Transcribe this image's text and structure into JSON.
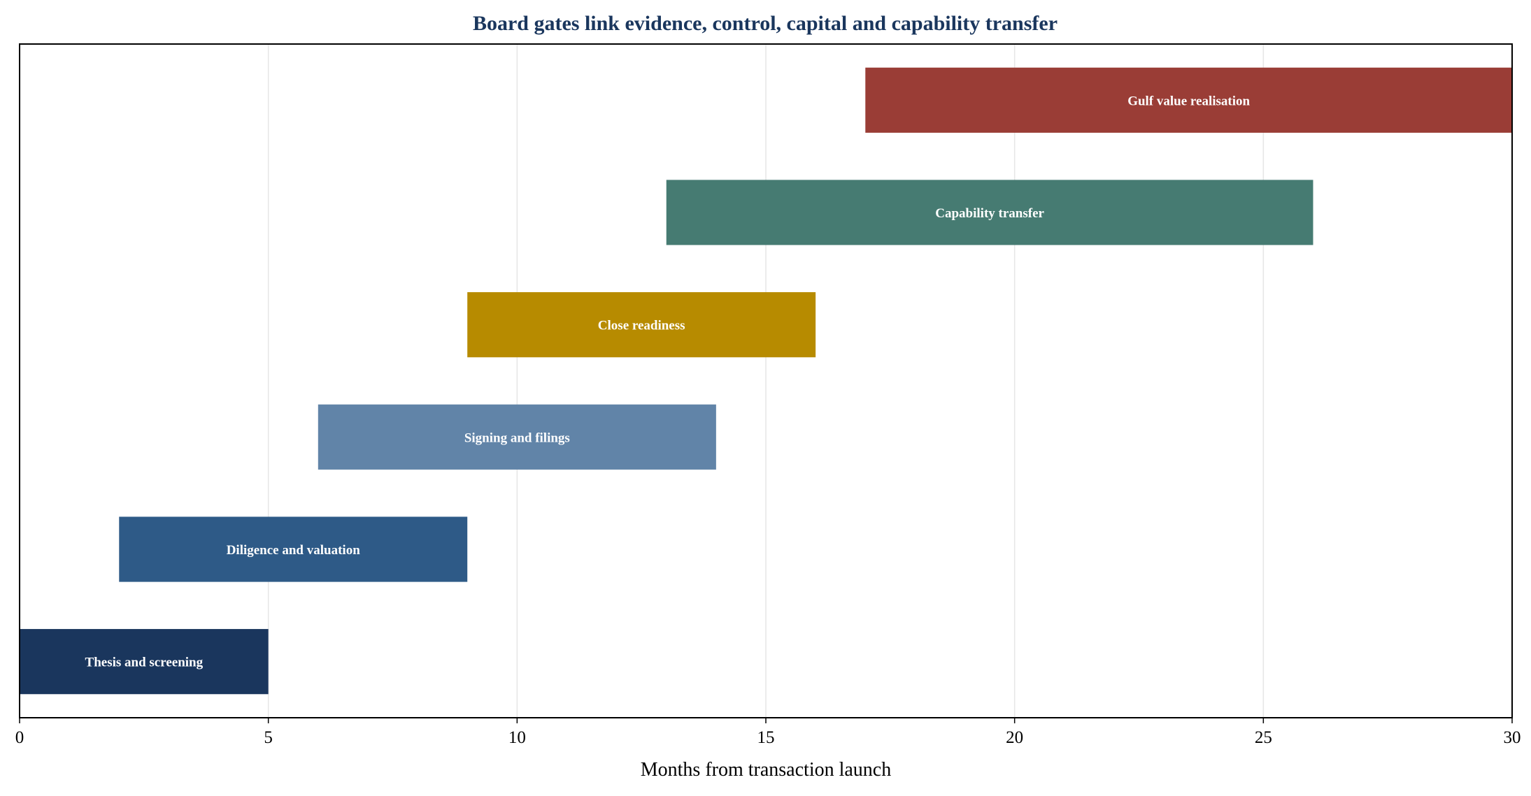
{
  "chart_data": {
    "type": "bar",
    "orientation": "horizontal",
    "title": "Board gates link evidence, control, capital and capability transfer",
    "xlabel": "Months from transaction launch",
    "ylabel": "",
    "xlim": [
      0,
      30
    ],
    "xticks": [
      0,
      5,
      10,
      15,
      20,
      25,
      30
    ],
    "grid": "vertical",
    "legend": "none",
    "tasks": [
      {
        "label": "Thesis and screening",
        "start": 0,
        "end": 5,
        "color": "#1a365d"
      },
      {
        "label": "Diligence and valuation",
        "start": 2,
        "end": 9,
        "color": "#2e5a87"
      },
      {
        "label": "Signing and filings",
        "start": 6,
        "end": 14,
        "color": "#6184a8"
      },
      {
        "label": "Close readiness",
        "start": 9,
        "end": 16,
        "color": "#b78b00"
      },
      {
        "label": "Capability transfer",
        "start": 13,
        "end": 26,
        "color": "#467b72"
      },
      {
        "label": "Gulf value realisation",
        "start": 17,
        "end": 30,
        "color": "#9a3d36"
      }
    ],
    "title_color": "#1a365d"
  }
}
